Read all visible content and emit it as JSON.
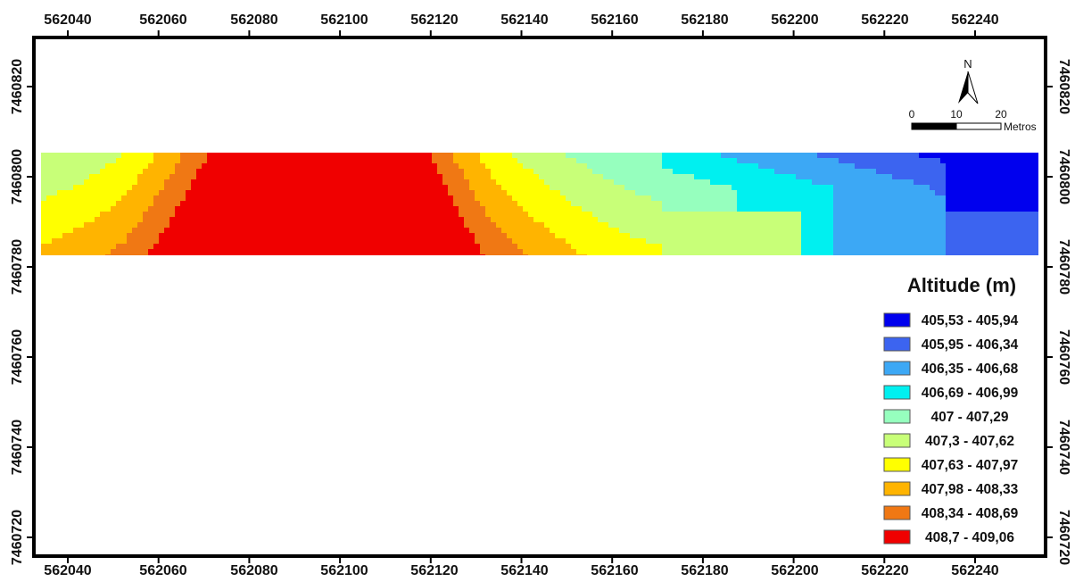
{
  "map": {
    "x_ticks": [
      "562040",
      "562060",
      "562080",
      "562100",
      "562120",
      "562140",
      "562160",
      "562180",
      "562200",
      "562220",
      "562240"
    ],
    "y_ticks": [
      "7460820",
      "7460800",
      "7460780",
      "7460760",
      "7460740",
      "7460720"
    ]
  },
  "north_arrow": {
    "label": "N",
    "icon": "north-arrow-icon"
  },
  "scale_bar": {
    "labels": [
      "0",
      "10",
      "20"
    ],
    "unit": "Metros"
  },
  "legend": {
    "title": "Altitude (m)",
    "classes": [
      {
        "label": "405,53 - 405,94",
        "color": "#0000ee"
      },
      {
        "label": "405,95 - 406,34",
        "color": "#3c64f0"
      },
      {
        "label": "406,35 - 406,68",
        "color": "#3ca8f5"
      },
      {
        "label": "406,69 - 406,99",
        "color": "#00f0f0"
      },
      {
        "label": "407 - 407,29",
        "color": "#96ffbe"
      },
      {
        "label": "407,3 - 407,62",
        "color": "#c8ff78"
      },
      {
        "label": "407,63 - 407,97",
        "color": "#ffff00"
      },
      {
        "label": "407,98 - 408,33",
        "color": "#ffb400"
      },
      {
        "label": "408,34 - 408,69",
        "color": "#f07814"
      },
      {
        "label": "408,7 - 409,06",
        "color": "#f00000"
      }
    ]
  }
}
